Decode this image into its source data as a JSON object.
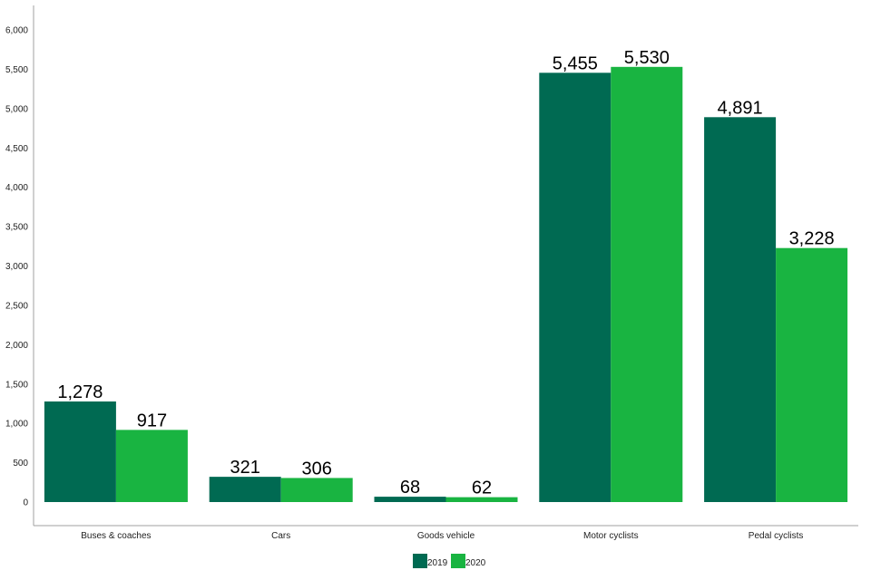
{
  "chart_data": {
    "type": "bar",
    "categories": [
      "Buses & coaches",
      "Cars",
      "Goods vehicle",
      "Motor cyclists",
      "Pedal cyclists"
    ],
    "series": [
      {
        "name": "2019",
        "color": "#006a52",
        "values": [
          1278,
          321,
          68,
          5455,
          4891
        ],
        "labels": [
          "1,278",
          "321",
          "68",
          "5,455",
          "4,891"
        ]
      },
      {
        "name": "2020",
        "color": "#19b441",
        "values": [
          917,
          306,
          62,
          5530,
          3228
        ],
        "labels": [
          "917",
          "306",
          "62",
          "5,530",
          "3,228"
        ]
      }
    ],
    "ylim": [
      0,
      6000
    ],
    "yticks": [
      0,
      500,
      1000,
      1500,
      2000,
      2500,
      3000,
      3500,
      4000,
      4500,
      5000,
      5500,
      6000
    ],
    "ytick_labels": [
      "0",
      "500",
      "1,000",
      "1,500",
      "2,000",
      "2,500",
      "3,000",
      "3,500",
      "4,000",
      "4,500",
      "5,000",
      "5,500",
      "6,000"
    ],
    "grid": false,
    "legend": "bottom-center",
    "title": "",
    "xlabel": "",
    "ylabel": ""
  }
}
